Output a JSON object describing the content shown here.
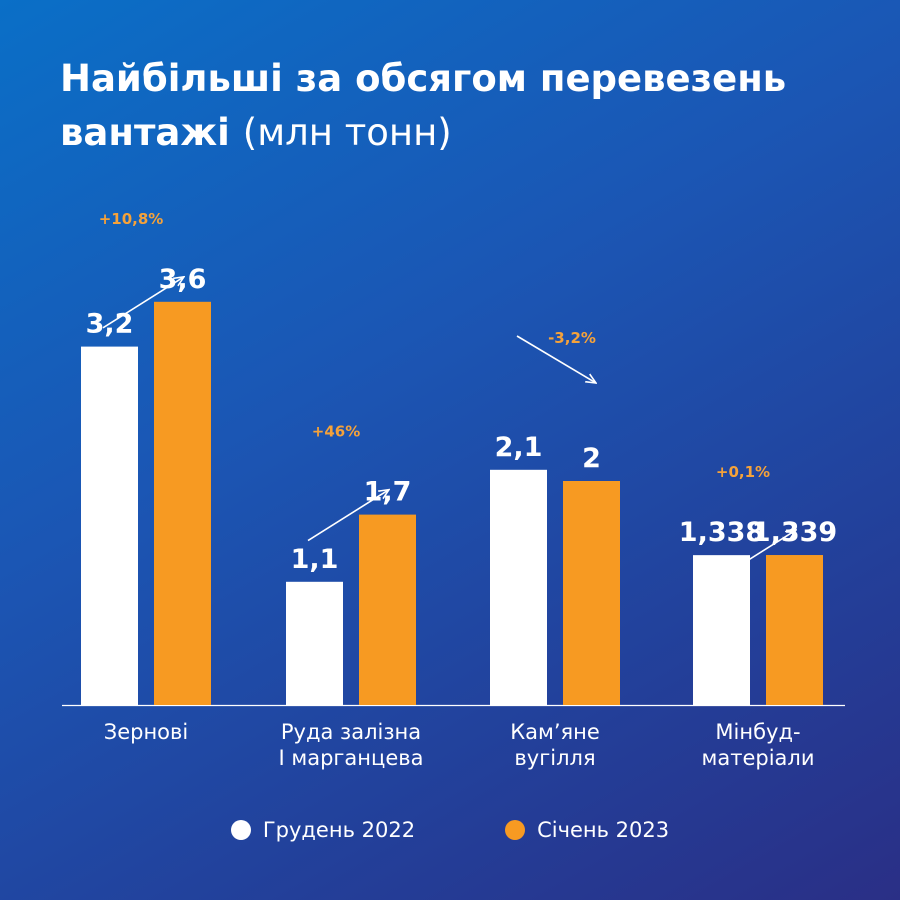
{
  "title_main": "Найбільші за обсягом перевезень вантажі",
  "title_unit": "(млн тонн)",
  "colors": {
    "white_series": "#ffffff",
    "orange_series": "#f79a22",
    "change_text": "#f5a23a"
  },
  "chart_data": {
    "type": "bar",
    "categories": [
      [
        "Зернові"
      ],
      [
        "Руда залізна",
        "І марганцева"
      ],
      [
        "Кам’яне",
        "вугілля"
      ],
      [
        "Мінбуд-",
        "матеріали"
      ]
    ],
    "series": [
      {
        "name": "Грудень 2022",
        "values": [
          3.2,
          1.1,
          2.1,
          1.338
        ],
        "labels": [
          "3,2",
          "1,1",
          "2,1",
          "1,338"
        ]
      },
      {
        "name": "Січень 2023",
        "values": [
          3.6,
          1.7,
          2.0,
          1.339
        ],
        "labels": [
          "3,6",
          "1,7",
          "2",
          "1,339"
        ]
      }
    ],
    "changes": [
      "+10,8%",
      "+46%",
      "-3,2%",
      "+0,1%"
    ],
    "change_direction": [
      "up",
      "up",
      "down",
      "up"
    ],
    "legend_position": "bottom",
    "grid": false
  }
}
